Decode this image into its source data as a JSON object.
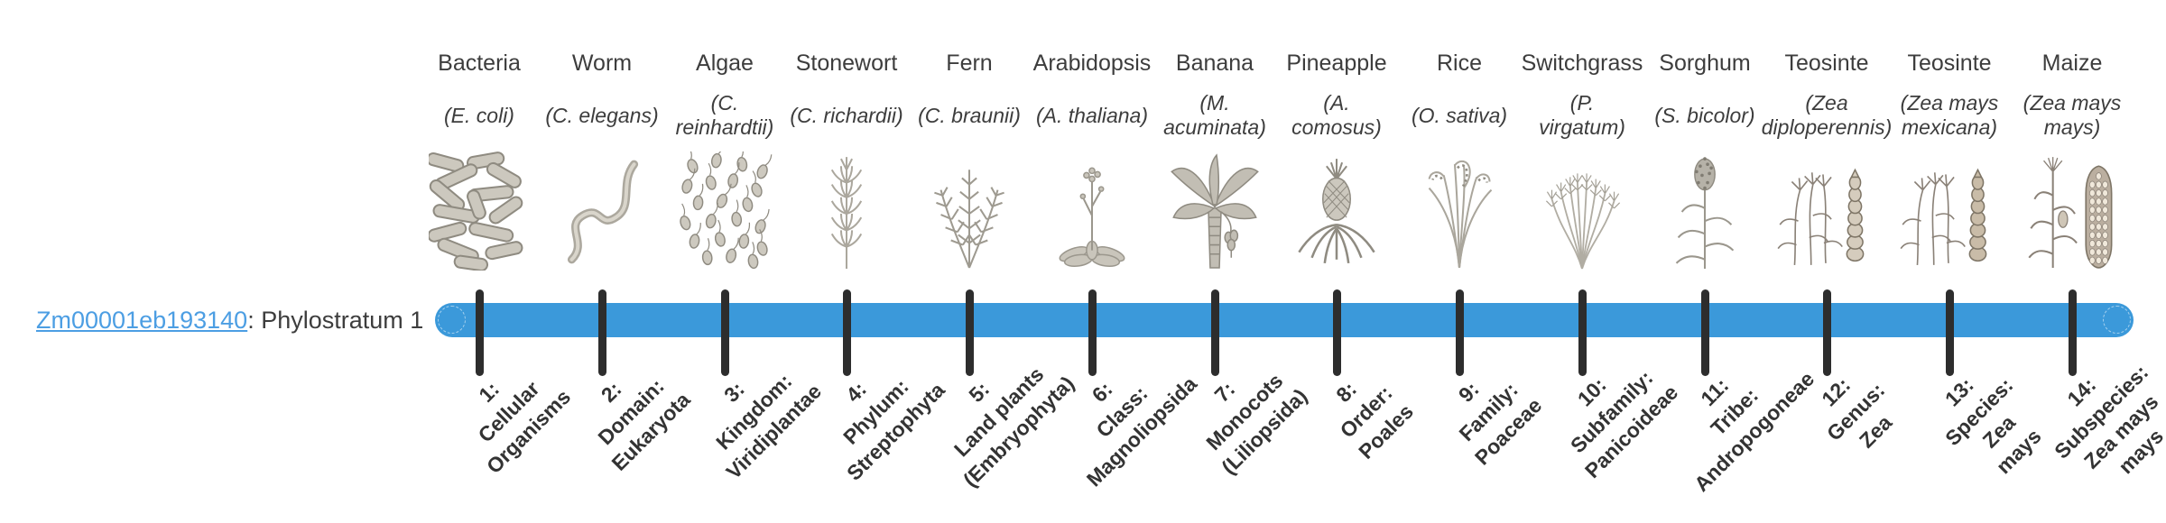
{
  "gene_label": {
    "gene_id": "Zm00001eb193140",
    "suffix": ": Phylostratum 1",
    "link_color": "#4c9ee3",
    "text_color": "#3d3d3d"
  },
  "timeline": {
    "bar_color": "#3b99da",
    "tick_color": "#2d2d2d",
    "tick_count": 14
  },
  "columns": [
    {
      "common_name": "Bacteria",
      "scientific_lines": [
        "(E. coli)"
      ],
      "icon": "bacteria-icon",
      "stratum_lines": [
        "1:",
        "Cellular",
        "Organisms"
      ]
    },
    {
      "common_name": "Worm",
      "scientific_lines": [
        "(C. elegans)"
      ],
      "icon": "worm-icon",
      "stratum_lines": [
        "2:",
        "Domain:",
        "Eukaryota"
      ]
    },
    {
      "common_name": "Algae",
      "scientific_lines": [
        "(C.",
        "reinhardtii)"
      ],
      "icon": "algae-icon",
      "stratum_lines": [
        "3:",
        "Kingdom:",
        "Viridiplantae"
      ]
    },
    {
      "common_name": "Stonewort",
      "scientific_lines": [
        "(C. richardii)"
      ],
      "icon": "stonewort-icon",
      "stratum_lines": [
        "4:",
        "Phylum:",
        "Streptophyta"
      ]
    },
    {
      "common_name": "Fern",
      "scientific_lines": [
        "(C. braunii)"
      ],
      "icon": "fern-icon",
      "stratum_lines": [
        "5:",
        "Land plants",
        "(Embryophyta)"
      ]
    },
    {
      "common_name": "Arabidopsis",
      "scientific_lines": [
        "(A. thaliana)"
      ],
      "icon": "arabidopsis-icon",
      "stratum_lines": [
        "6:",
        "Class:",
        "Magnoliopsida"
      ]
    },
    {
      "common_name": "Banana",
      "scientific_lines": [
        "(M.",
        "acuminata)"
      ],
      "icon": "banana-icon",
      "stratum_lines": [
        "7:",
        "Monocots",
        "(Liliopsida)"
      ]
    },
    {
      "common_name": "Pineapple",
      "scientific_lines": [
        "(A.",
        "comosus)"
      ],
      "icon": "pineapple-icon",
      "stratum_lines": [
        "8:",
        "Order:",
        "Poales"
      ]
    },
    {
      "common_name": "Rice",
      "scientific_lines": [
        "(O. sativa)"
      ],
      "icon": "rice-icon",
      "stratum_lines": [
        "9:",
        "Family:",
        "Poaceae"
      ]
    },
    {
      "common_name": "Switchgrass",
      "scientific_lines": [
        "(P.",
        "virgatum)"
      ],
      "icon": "switchgrass-icon",
      "stratum_lines": [
        "10:",
        "Subfamily:",
        "Panicoideae"
      ]
    },
    {
      "common_name": "Sorghum",
      "scientific_lines": [
        "(S. bicolor)"
      ],
      "icon": "sorghum-icon",
      "stratum_lines": [
        "11:",
        "Tribe:",
        "Andropogoneae"
      ]
    },
    {
      "common_name": "Teosinte",
      "scientific_lines": [
        "(Zea",
        "diploperennis)"
      ],
      "icon": "teosinte-diploperennis-icon",
      "stratum_lines": [
        "12:",
        "Genus:",
        "Zea"
      ]
    },
    {
      "common_name": "Teosinte",
      "scientific_lines": [
        "(Zea mays",
        "mexicana)"
      ],
      "icon": "teosinte-mexicana-icon",
      "stratum_lines": [
        "13:",
        "Species:",
        "Zea",
        "mays"
      ]
    },
    {
      "common_name": "Maize",
      "scientific_lines": [
        "(Zea mays",
        "mays)"
      ],
      "icon": "maize-icon",
      "stratum_lines": [
        "14:",
        "Subspecies:",
        "Zea mays",
        "mays"
      ]
    }
  ]
}
